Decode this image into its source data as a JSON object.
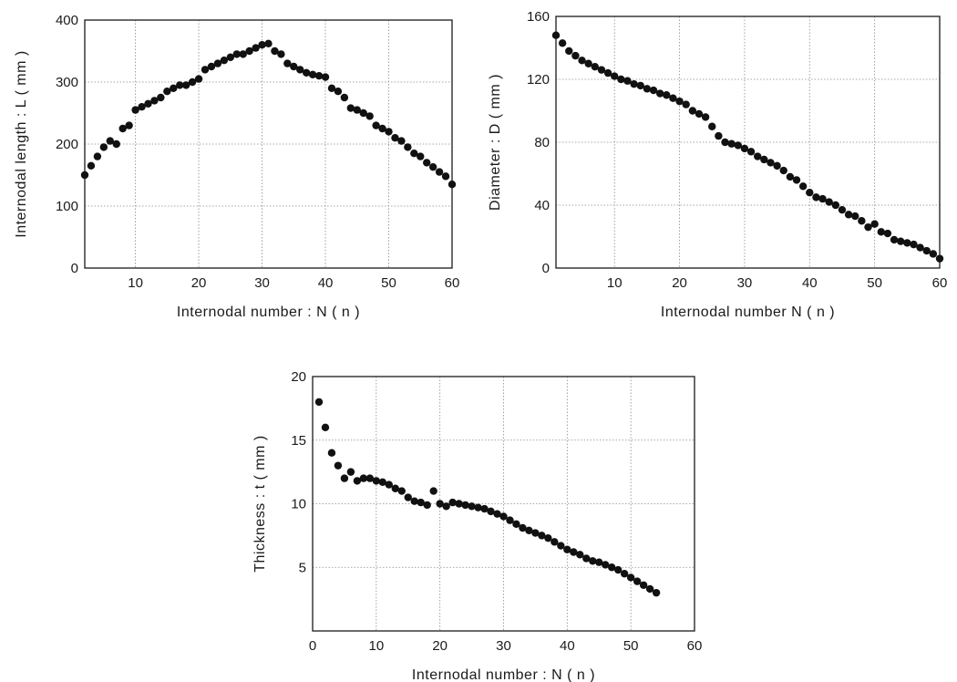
{
  "chart_data": [
    {
      "type": "scatter",
      "xlabel": "Internodal number : N ( n )",
      "ylabel": "Internodal length : L ( mm )",
      "xlim": [
        2,
        60
      ],
      "ylim": [
        0,
        400
      ],
      "xticks": [
        10,
        20,
        30,
        40,
        50,
        60
      ],
      "yticks": [
        0,
        100,
        200,
        300,
        400
      ],
      "grid": true,
      "series": [
        {
          "x": [
            2,
            3,
            4,
            5,
            6,
            7,
            8,
            9,
            10,
            11,
            12,
            13,
            14,
            15,
            16,
            17,
            18,
            19,
            20,
            21,
            22,
            23,
            24,
            25,
            26,
            27,
            28,
            29,
            30,
            31,
            32,
            33,
            34,
            35,
            36,
            37,
            38,
            39,
            40,
            41,
            42,
            43,
            44,
            45,
            46,
            47,
            48,
            49,
            50,
            51,
            52,
            53,
            54,
            55,
            56,
            57,
            58,
            59,
            60
          ],
          "y": [
            150,
            165,
            180,
            195,
            205,
            200,
            225,
            230,
            255,
            260,
            265,
            270,
            275,
            285,
            290,
            295,
            295,
            300,
            305,
            320,
            325,
            330,
            335,
            340,
            345,
            345,
            350,
            355,
            360,
            362,
            350,
            345,
            330,
            325,
            320,
            315,
            312,
            310,
            308,
            290,
            285,
            275,
            258,
            255,
            250,
            245,
            230,
            225,
            220,
            210,
            205,
            195,
            185,
            180,
            170,
            163,
            155,
            148,
            135
          ]
        }
      ]
    },
    {
      "type": "scatter",
      "xlabel": "Internodal number N ( n )",
      "ylabel": "Diameter : D ( mm )",
      "xlim": [
        1,
        60
      ],
      "ylim": [
        0,
        160
      ],
      "xticks": [
        10,
        20,
        30,
        40,
        50,
        60
      ],
      "yticks": [
        0,
        40,
        80,
        120,
        160
      ],
      "grid": true,
      "series": [
        {
          "x": [
            1,
            2,
            3,
            4,
            5,
            6,
            7,
            8,
            9,
            10,
            11,
            12,
            13,
            14,
            15,
            16,
            17,
            18,
            19,
            20,
            21,
            22,
            23,
            24,
            25,
            26,
            27,
            28,
            29,
            30,
            31,
            32,
            33,
            34,
            35,
            36,
            37,
            38,
            39,
            40,
            41,
            42,
            43,
            44,
            45,
            46,
            47,
            48,
            49,
            50,
            51,
            52,
            53,
            54,
            55,
            56,
            57,
            58,
            59,
            60
          ],
          "y": [
            148,
            143,
            138,
            135,
            132,
            130,
            128,
            126,
            124,
            122,
            120,
            119,
            117,
            116,
            114,
            113,
            111,
            110,
            108,
            106,
            104,
            100,
            98,
            96,
            90,
            84,
            80,
            79,
            78,
            76,
            74,
            71,
            69,
            67,
            65,
            62,
            58,
            56,
            52,
            48,
            45,
            44,
            42,
            40,
            37,
            34,
            33,
            30,
            26,
            28,
            23,
            22,
            18,
            17,
            16,
            15,
            13,
            11,
            9,
            6
          ]
        }
      ]
    },
    {
      "type": "scatter",
      "xlabel": "Internodal number : N ( n )",
      "ylabel": "Thickness : t ( mm )",
      "xlim": [
        0,
        60
      ],
      "ylim": [
        0,
        20
      ],
      "xticks": [
        0,
        10,
        20,
        30,
        40,
        50,
        60
      ],
      "yticks": [
        5,
        10,
        15,
        20
      ],
      "grid": true,
      "series": [
        {
          "x": [
            1,
            2,
            3,
            4,
            5,
            6,
            7,
            8,
            9,
            10,
            11,
            12,
            13,
            14,
            15,
            16,
            17,
            18,
            19,
            20,
            21,
            22,
            23,
            24,
            25,
            26,
            27,
            28,
            29,
            30,
            31,
            32,
            33,
            34,
            35,
            36,
            37,
            38,
            39,
            40,
            41,
            42,
            43,
            44,
            45,
            46,
            47,
            48,
            49,
            50,
            51,
            52,
            53,
            54
          ],
          "y": [
            18,
            16,
            14,
            13,
            12,
            12.5,
            11.8,
            12,
            12,
            11.8,
            11.7,
            11.5,
            11.2,
            11,
            10.5,
            10.2,
            10.1,
            9.9,
            11,
            10,
            9.8,
            10.1,
            10,
            9.9,
            9.8,
            9.7,
            9.6,
            9.4,
            9.2,
            9,
            8.7,
            8.4,
            8.1,
            7.9,
            7.7,
            7.5,
            7.3,
            7,
            6.7,
            6.4,
            6.2,
            6,
            5.7,
            5.5,
            5.4,
            5.2,
            5,
            4.8,
            4.5,
            4.2,
            3.9,
            3.6,
            3.3,
            3
          ]
        }
      ]
    }
  ]
}
